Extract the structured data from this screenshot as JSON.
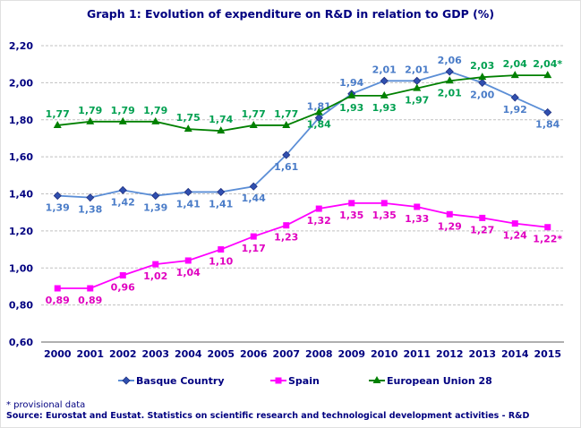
{
  "chart_data": {
    "type": "line",
    "title": "Graph 1: Evolution of expenditure on R&D in relation to GDP (%)",
    "categories": [
      "2000",
      "2001",
      "2002",
      "2003",
      "2004",
      "2005",
      "2006",
      "2007",
      "2008",
      "2009",
      "2010",
      "2011",
      "2012",
      "2013",
      "2014",
      "2015"
    ],
    "ylim": [
      0.6,
      2.2
    ],
    "yticks": [
      "0,60",
      "0,80",
      "1,00",
      "1,20",
      "1,40",
      "1,60",
      "1,80",
      "2,00",
      "2,20"
    ],
    "grid": true,
    "legend_position": "bottom",
    "series": [
      {
        "name": "Basque Country",
        "color": "#5b8ed6",
        "marker": "diamond",
        "label_color": "#4a7cc8",
        "values": [
          1.39,
          1.38,
          1.42,
          1.39,
          1.41,
          1.41,
          1.44,
          1.61,
          1.81,
          1.94,
          2.01,
          2.01,
          2.06,
          2.0,
          1.92,
          1.84
        ],
        "labels": [
          "1,39",
          "1,38",
          "1,42",
          "1,39",
          "1,41",
          "1,41",
          "1,44",
          "1,61",
          "1,81",
          "1,94",
          "2,01",
          "2,01",
          "2,06",
          "2,00",
          "1,92",
          "1,84"
        ]
      },
      {
        "name": "Spain",
        "color": "#ff00ff",
        "marker": "square",
        "label_color": "#e000c0",
        "values": [
          0.89,
          0.89,
          0.96,
          1.02,
          1.04,
          1.1,
          1.17,
          1.23,
          1.32,
          1.35,
          1.35,
          1.33,
          1.29,
          1.27,
          1.24,
          1.22
        ],
        "labels": [
          "0,89",
          "0,89",
          "0,96",
          "1,02",
          "1,04",
          "1,10",
          "1,17",
          "1,23",
          "1,32",
          "1,35",
          "1,35",
          "1,33",
          "1,29",
          "1,27",
          "1,24",
          "1,22*"
        ]
      },
      {
        "name": "European Union 28",
        "color": "#008000",
        "marker": "triangle",
        "label_color": "#00a050",
        "values": [
          1.77,
          1.79,
          1.79,
          1.79,
          1.75,
          1.74,
          1.77,
          1.77,
          1.84,
          1.93,
          1.93,
          1.97,
          2.01,
          2.03,
          2.04,
          2.04
        ],
        "labels": [
          "1,77",
          "1,79",
          "1,79",
          "1,79",
          "1,75",
          "1,74",
          "1,77",
          "1,77",
          "1,84",
          "1,93",
          "1,93",
          "1,97",
          "2,01",
          "2,03",
          "2,04",
          "2,04*"
        ]
      }
    ]
  },
  "footnote": "* provisional data",
  "source": "Source: Eurostat and Eustat. Statistics on scientific research and technological development activities - R&D"
}
